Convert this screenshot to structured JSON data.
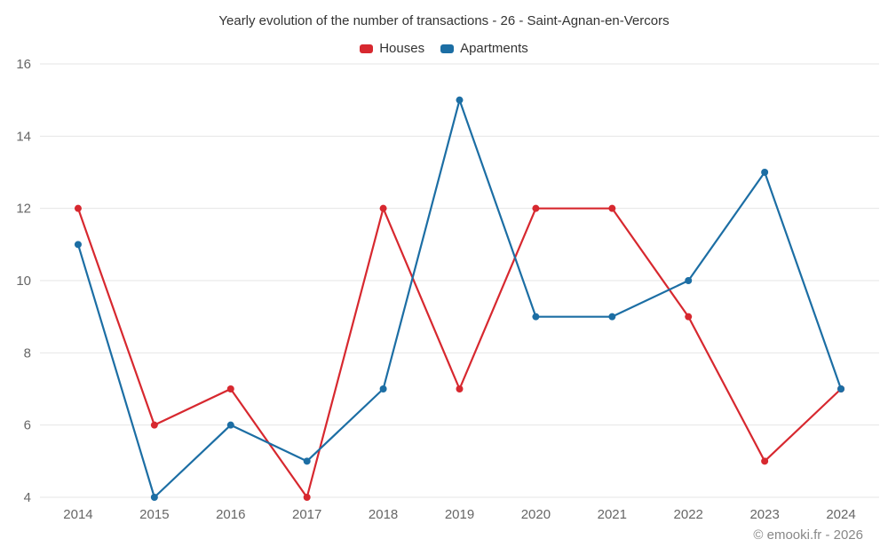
{
  "chart_data": {
    "type": "line",
    "title": "Yearly evolution of the number of transactions - 26 - Saint-Agnan-en-Vercors",
    "categories": [
      "2014",
      "2015",
      "2016",
      "2017",
      "2018",
      "2019",
      "2020",
      "2021",
      "2022",
      "2023",
      "2024"
    ],
    "series": [
      {
        "name": "Houses",
        "color": "#d7282f",
        "values": [
          12,
          6,
          7,
          4,
          12,
          7,
          12,
          12,
          9,
          5,
          7
        ]
      },
      {
        "name": "Apartments",
        "color": "#1c6ea4",
        "values": [
          11,
          4,
          6,
          5,
          7,
          15,
          9,
          9,
          10,
          13,
          7
        ]
      }
    ],
    "ylim": [
      4,
      16
    ],
    "yticks": [
      4,
      6,
      8,
      10,
      12,
      14,
      16
    ],
    "grid": "horizontal",
    "legend_position": "top",
    "footer": "© emooki.fr - 2026"
  }
}
